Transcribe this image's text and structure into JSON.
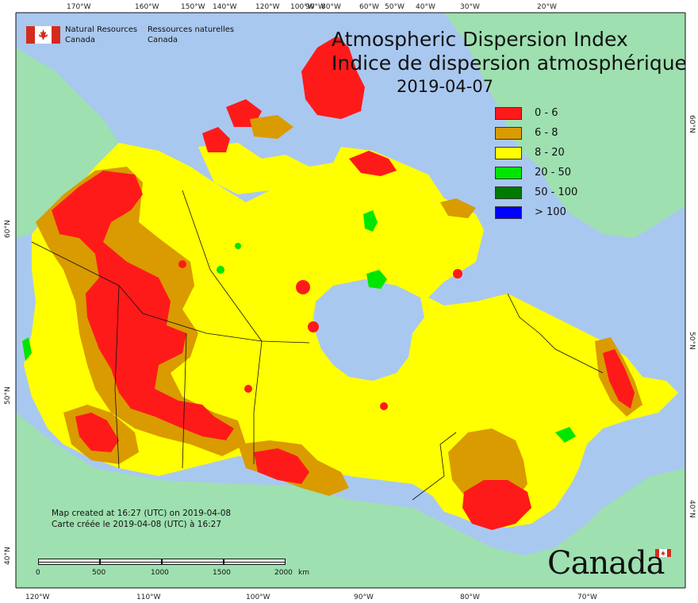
{
  "agency": {
    "name_en_line1": "Natural Resources",
    "name_en_line2": "Canada",
    "name_fr_line1": "Ressources naturelles",
    "name_fr_line2": "Canada"
  },
  "title": {
    "line_en": "Atmospheric Dispersion Index",
    "line_fr": "Indice de dispersion atmosphérique",
    "date": "2019-04-07"
  },
  "legend": [
    {
      "label": "0 - 6",
      "color": "#ff1a1a"
    },
    {
      "label": "6 - 8",
      "color": "#d99b00"
    },
    {
      "label": "8 - 20",
      "color": "#ffff00"
    },
    {
      "label": "20 - 50",
      "color": "#00e600"
    },
    {
      "label": "50 - 100",
      "color": "#007a00"
    },
    {
      "label": "> 100",
      "color": "#0000ff"
    }
  ],
  "created": {
    "en": "Map created at 16:27 (UTC) on 2019-04-08",
    "fr": "Carte créée le 2019-04-08 (UTC) à 16:27"
  },
  "scale": {
    "labels": [
      "0",
      "500",
      "1000",
      "1500",
      "2000"
    ],
    "unit": "km"
  },
  "wordmark": "Canada",
  "graticule": {
    "top_labels": [
      "170°W",
      "160°W",
      "150°W",
      "140°W",
      "120°W",
      "100°W",
      "90°W",
      "80°W",
      "60°W",
      "50°W",
      "40°W",
      "30°W",
      "20°W"
    ],
    "bottom_labels": [
      "120°W",
      "110°W",
      "100°W",
      "90°W",
      "80°W",
      "70°W"
    ],
    "left_labels": [
      "60°N",
      "50°N",
      "40°N"
    ],
    "right_labels": [
      "60°N",
      "50°N",
      "40°N"
    ]
  },
  "colors": {
    "ocean": "#a9c8ef",
    "land_outside": "#9ee0b0",
    "greenland": "#9ee0b0",
    "border": "#111111"
  }
}
